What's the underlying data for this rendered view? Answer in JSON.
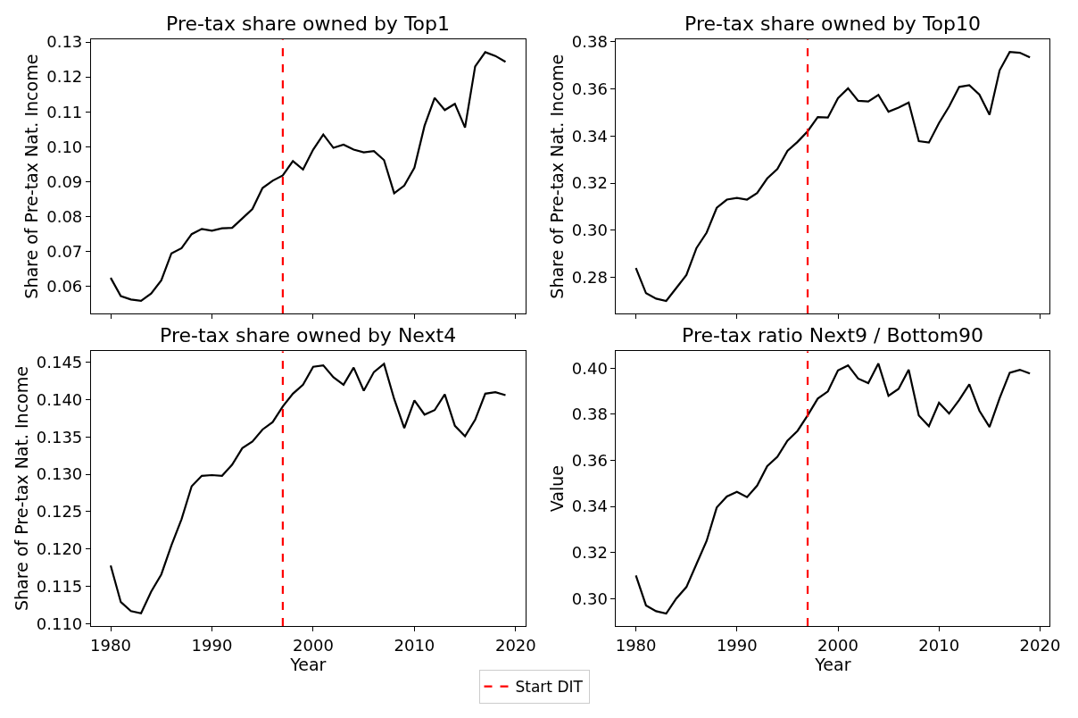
{
  "chart_data": [
    {
      "type": "line",
      "title": "Pre-tax share owned by Top1",
      "ylabel": "Share of Pre-tax Nat. Income",
      "tick_labels": "y",
      "legend": "bottom",
      "line_style": "solid",
      "x": [
        1980,
        1981,
        1982,
        1983,
        1984,
        1985,
        1986,
        1987,
        1988,
        1989,
        1990,
        1991,
        1992,
        1993,
        1994,
        1995,
        1996,
        1997,
        1998,
        1999,
        2000,
        2001,
        2002,
        2003,
        2004,
        2005,
        2006,
        2007,
        2008,
        2009,
        2010,
        2011,
        2012,
        2013,
        2014,
        2015,
        2016,
        2017,
        2018,
        2019
      ],
      "series": [
        {
          "color": "#000000",
          "values": [
            0.0625,
            0.0573,
            0.0563,
            0.0559,
            0.058,
            0.0618,
            0.0695,
            0.071,
            0.075,
            0.0765,
            0.076,
            0.0767,
            0.0768,
            0.0795,
            0.0822,
            0.0882,
            0.0903,
            0.0918,
            0.0959,
            0.0935,
            0.0992,
            0.1035,
            0.0997,
            0.1006,
            0.0992,
            0.0984,
            0.0988,
            0.0962,
            0.0867,
            0.0889,
            0.094,
            0.106,
            0.114,
            0.1105,
            0.1123,
            0.1055,
            0.123,
            0.1271,
            0.126,
            0.1243
          ]
        }
      ],
      "xlim": [
        1978.05,
        2020.95
      ],
      "xticks": [
        1980,
        1990,
        2000,
        2010,
        2020
      ],
      "ylim": [
        0.0523,
        0.1307
      ],
      "yticks": [
        {
          "value": 0.06,
          "label": "0.06"
        },
        {
          "value": 0.07,
          "label": "0.07"
        },
        {
          "value": 0.08,
          "label": "0.08"
        },
        {
          "value": 0.09,
          "label": "0.09"
        },
        {
          "value": 0.1,
          "label": "0.10"
        },
        {
          "value": 0.11,
          "label": "0.11"
        },
        {
          "value": 0.12,
          "label": "0.12"
        },
        {
          "value": 0.13,
          "label": "0.13"
        }
      ],
      "ref_lines": [
        {
          "axis": "x",
          "value": 1997,
          "label": "Start DIT",
          "color": "#ff0000",
          "line_style": "dashed"
        }
      ]
    },
    {
      "type": "line",
      "title": "Pre-tax share owned by Top10",
      "ylabel": "Share of Pre-tax Nat. Income",
      "tick_labels": "y",
      "line_style": "solid",
      "x": [
        1980,
        1981,
        1982,
        1983,
        1984,
        1985,
        1986,
        1987,
        1988,
        1989,
        1990,
        1991,
        1992,
        1993,
        1994,
        1995,
        1996,
        1997,
        1998,
        1999,
        2000,
        2001,
        2002,
        2003,
        2004,
        2005,
        2006,
        2007,
        2008,
        2009,
        2010,
        2011,
        2012,
        2013,
        2014,
        2015,
        2016,
        2017,
        2018,
        2019
      ],
      "series": [
        {
          "color": "#000000",
          "values": [
            0.284,
            0.2733,
            0.271,
            0.27,
            0.2755,
            0.281,
            0.2925,
            0.299,
            0.3095,
            0.313,
            0.3137,
            0.313,
            0.3158,
            0.322,
            0.326,
            0.3337,
            0.3375,
            0.342,
            0.348,
            0.3478,
            0.356,
            0.3602,
            0.3549,
            0.3546,
            0.3574,
            0.3503,
            0.352,
            0.3542,
            0.3378,
            0.3372,
            0.3455,
            0.3525,
            0.3608,
            0.3615,
            0.3575,
            0.349,
            0.3678,
            0.3756,
            0.3753,
            0.3733
          ]
        }
      ],
      "xlim": [
        1978.05,
        2020.95
      ],
      "xticks": [
        1980,
        1990,
        2000,
        2010,
        2020
      ],
      "ylim": [
        0.2647,
        0.3809
      ],
      "yticks": [
        {
          "value": 0.28,
          "label": "0.28"
        },
        {
          "value": 0.3,
          "label": "0.30"
        },
        {
          "value": 0.32,
          "label": "0.32"
        },
        {
          "value": 0.34,
          "label": "0.34"
        },
        {
          "value": 0.36,
          "label": "0.36"
        },
        {
          "value": 0.38,
          "label": "0.38"
        }
      ],
      "ref_lines": [
        {
          "axis": "x",
          "value": 1997,
          "color": "#ff0000",
          "line_style": "dashed"
        }
      ]
    },
    {
      "type": "line",
      "title": "Pre-tax share owned by Next4",
      "xlabel": "Year",
      "ylabel": "Share of Pre-tax Nat. Income",
      "line_style": "solid",
      "x": [
        1980,
        1981,
        1982,
        1983,
        1984,
        1985,
        1986,
        1987,
        1988,
        1989,
        1990,
        1991,
        1992,
        1993,
        1994,
        1995,
        1996,
        1997,
        1998,
        1999,
        2000,
        2001,
        2002,
        2003,
        2004,
        2005,
        2006,
        2007,
        2008,
        2009,
        2010,
        2011,
        2012,
        2013,
        2014,
        2015,
        2016,
        2017,
        2018,
        2019
      ],
      "series": [
        {
          "color": "#000000",
          "values": [
            0.1178,
            0.1129,
            0.1117,
            0.1114,
            0.1143,
            0.1166,
            0.1205,
            0.124,
            0.1284,
            0.1298,
            0.1299,
            0.1298,
            0.1313,
            0.1335,
            0.1344,
            0.136,
            0.137,
            0.1391,
            0.1408,
            0.142,
            0.1444,
            0.1446,
            0.143,
            0.142,
            0.1443,
            0.1412,
            0.1437,
            0.1448,
            0.1401,
            0.1362,
            0.1399,
            0.138,
            0.1386,
            0.1407,
            0.1365,
            0.1351,
            0.1373,
            0.1408,
            0.141,
            0.1406
          ]
        }
      ],
      "xlim": [
        1978.05,
        2020.95
      ],
      "xticks": [
        1980,
        1990,
        2000,
        2010,
        2020
      ],
      "ylim": [
        0.1097,
        0.1465
      ],
      "yticks": [
        {
          "value": 0.11,
          "label": "0.110"
        },
        {
          "value": 0.115,
          "label": "0.115"
        },
        {
          "value": 0.12,
          "label": "0.120"
        },
        {
          "value": 0.125,
          "label": "0.125"
        },
        {
          "value": 0.13,
          "label": "0.130"
        },
        {
          "value": 0.135,
          "label": "0.135"
        },
        {
          "value": 0.14,
          "label": "0.140"
        },
        {
          "value": 0.145,
          "label": "0.145"
        }
      ],
      "ref_lines": [
        {
          "axis": "x",
          "value": 1997,
          "color": "#ff0000",
          "line_style": "dashed"
        }
      ]
    },
    {
      "type": "line",
      "title": "Pre-tax ratio Next9 / Bottom90",
      "xlabel": "Year",
      "ylabel": "Value",
      "line_style": "solid",
      "x": [
        1980,
        1981,
        1982,
        1983,
        1984,
        1985,
        1986,
        1987,
        1988,
        1989,
        1990,
        1991,
        1992,
        1993,
        1994,
        1995,
        1996,
        1997,
        1998,
        1999,
        2000,
        2001,
        2002,
        2003,
        2004,
        2005,
        2006,
        2007,
        2008,
        2009,
        2010,
        2011,
        2012,
        2013,
        2014,
        2015,
        2016,
        2017,
        2018,
        2019
      ],
      "series": [
        {
          "color": "#000000",
          "values": [
            0.31,
            0.297,
            0.2945,
            0.2935,
            0.3,
            0.305,
            0.315,
            0.325,
            0.3395,
            0.3443,
            0.3463,
            0.344,
            0.349,
            0.3575,
            0.3615,
            0.3685,
            0.3728,
            0.3795,
            0.3868,
            0.3899,
            0.399,
            0.4012,
            0.3955,
            0.3935,
            0.402,
            0.388,
            0.391,
            0.3993,
            0.3795,
            0.3748,
            0.385,
            0.3803,
            0.3862,
            0.393,
            0.3815,
            0.3745,
            0.387,
            0.398,
            0.3993,
            0.3977
          ]
        }
      ],
      "xlim": [
        1978.05,
        2020.95
      ],
      "xticks": [
        1980,
        1990,
        2000,
        2010,
        2020
      ],
      "ylim": [
        0.2881,
        0.4074
      ],
      "yticks": [
        {
          "value": 0.3,
          "label": "0.30"
        },
        {
          "value": 0.32,
          "label": "0.32"
        },
        {
          "value": 0.34,
          "label": "0.34"
        },
        {
          "value": 0.36,
          "label": "0.36"
        },
        {
          "value": 0.38,
          "label": "0.38"
        },
        {
          "value": 0.4,
          "label": "0.40"
        }
      ],
      "ref_lines": [
        {
          "axis": "x",
          "value": 1997,
          "color": "#ff0000",
          "line_style": "dashed"
        }
      ]
    }
  ]
}
